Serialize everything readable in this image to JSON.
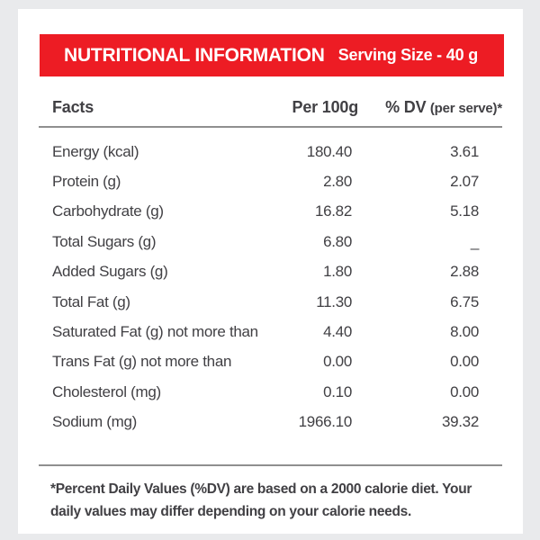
{
  "header": {
    "title": "NUTRITIONAL INFORMATION",
    "serving_size": "Serving Size - 40 g"
  },
  "table": {
    "columns": {
      "facts": "Facts",
      "per100g": "Per 100g",
      "dv_main": "% DV",
      "dv_sub": "(per serve)*"
    },
    "rows": [
      {
        "label": "Energy (kcal)",
        "per100g": "180.40",
        "dv": "3.61"
      },
      {
        "label": "Protein (g)",
        "per100g": "2.80",
        "dv": "2.07"
      },
      {
        "label": "Carbohydrate (g)",
        "per100g": "16.82",
        "dv": "5.18"
      },
      {
        "label": "Total Sugars (g)",
        "per100g": "6.80",
        "dv": "_"
      },
      {
        "label": "Added Sugars (g)",
        "per100g": "1.80",
        "dv": "2.88"
      },
      {
        "label": "Total Fat (g)",
        "per100g": "11.30",
        "dv": "6.75"
      },
      {
        "label": "Saturated Fat (g) not more than",
        "per100g": "4.40",
        "dv": "8.00"
      },
      {
        "label": "Trans Fat (g) not more than",
        "per100g": "0.00",
        "dv": "0.00"
      },
      {
        "label": "Cholesterol (mg)",
        "per100g": "0.10",
        "dv": "0.00"
      },
      {
        "label": "Sodium (mg)",
        "per100g": "1966.10",
        "dv": "39.32"
      }
    ]
  },
  "footnote": "*Percent Daily Values (%DV) are based on a 2000 calorie diet. Your daily values may differ depending on your calorie needs.",
  "colors": {
    "accent_red": "#ed1c24",
    "background": "#e9eaec",
    "card": "#ffffff",
    "text": "#414044",
    "rule": "#8f8f8f"
  }
}
